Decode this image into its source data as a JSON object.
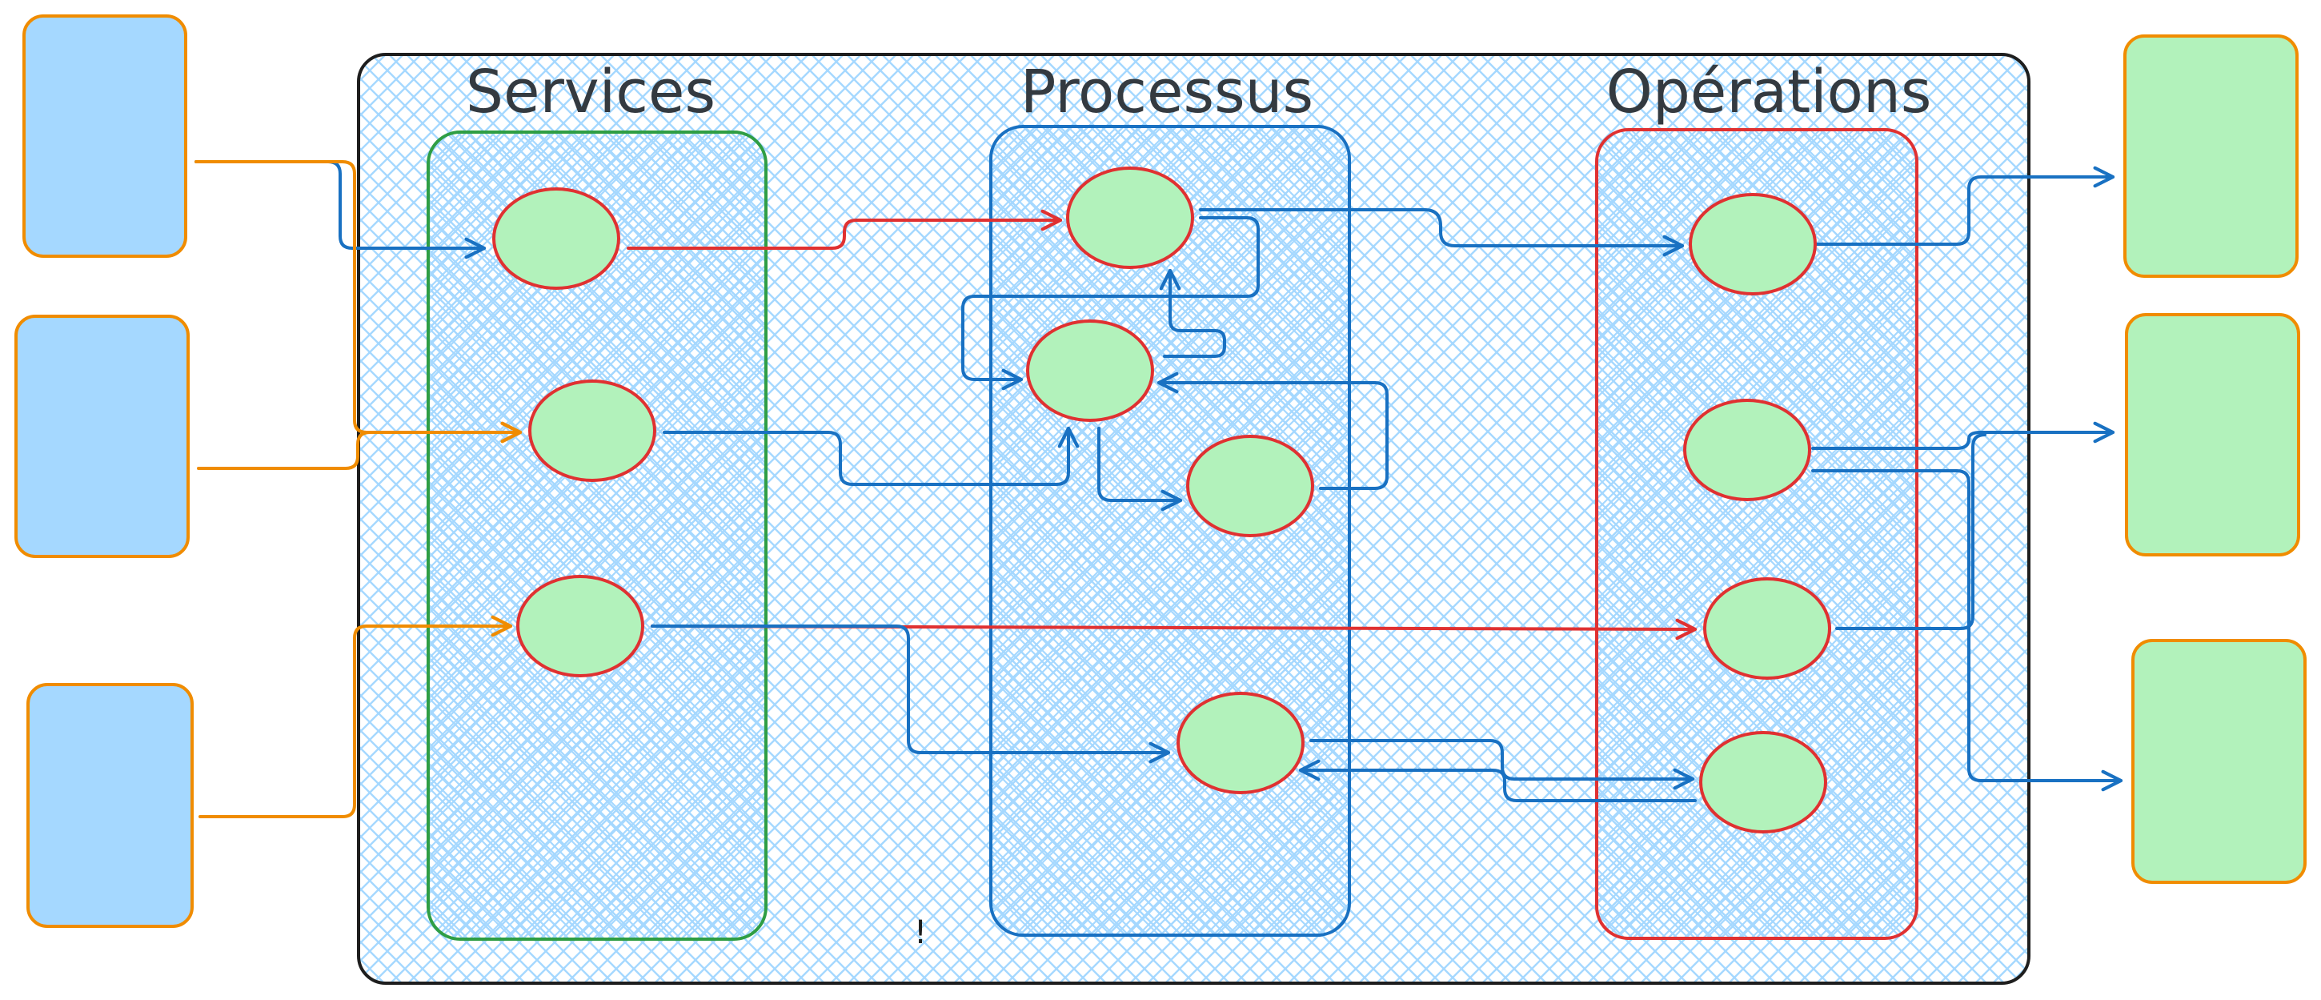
{
  "diagram": {
    "colors": {
      "container_fill": "#a5d8ff",
      "container_stroke": "#1e1e1e",
      "external_input_fill": "#a5d8ff",
      "external_output_fill": "#b2f2bb",
      "external_border": "#f08c00",
      "node_fill": "#b2f2bb",
      "node_stroke": "#e03131",
      "services_group_stroke": "#2f9e44",
      "processus_group_stroke": "#1971c2",
      "operations_group_stroke": "#e03131",
      "arrow_blue": "#1971c2",
      "arrow_red": "#e03131",
      "arrow_orange": "#f08c00"
    },
    "groups": [
      {
        "id": "services",
        "title": "Services"
      },
      {
        "id": "processus",
        "title": "Processus"
      },
      {
        "id": "operations",
        "title": "Opérations"
      }
    ],
    "external_inputs": [
      "input-1",
      "input-2",
      "input-3"
    ],
    "external_outputs": [
      "output-1",
      "output-2",
      "output-3"
    ],
    "nodes": {
      "services": [
        "s1",
        "s2",
        "s3"
      ],
      "processus": [
        "p1",
        "p2",
        "p3",
        "p4"
      ],
      "operations": [
        "o1",
        "o2",
        "o3",
        "o4"
      ]
    },
    "edges": [
      {
        "from": "input-1",
        "to": "s1",
        "color": "blue"
      },
      {
        "from": "input-1",
        "to": "s2",
        "color": "orange"
      },
      {
        "from": "input-2",
        "to": "s2",
        "color": "orange"
      },
      {
        "from": "input-3",
        "to": "s3",
        "color": "orange"
      },
      {
        "from": "s1",
        "to": "p1",
        "color": "red"
      },
      {
        "from": "s2",
        "to": "p2",
        "color": "blue"
      },
      {
        "from": "s3",
        "to": "o3",
        "color": "red"
      },
      {
        "from": "s3",
        "to": "p4",
        "color": "blue"
      },
      {
        "from": "p1",
        "to": "o1",
        "color": "blue"
      },
      {
        "from": "p1",
        "to": "p2",
        "color": "blue"
      },
      {
        "from": "p2",
        "to": "p1",
        "color": "blue"
      },
      {
        "from": "p2",
        "to": "p3",
        "color": "blue"
      },
      {
        "from": "p3",
        "to": "p2",
        "color": "blue"
      },
      {
        "from": "p4",
        "to": "o4",
        "color": "blue"
      },
      {
        "from": "o4",
        "to": "p4",
        "color": "blue"
      },
      {
        "from": "o1",
        "to": "output-1",
        "color": "blue"
      },
      {
        "from": "o2",
        "to": "output-2",
        "color": "blue"
      },
      {
        "from": "o2",
        "to": "output-3",
        "color": "blue"
      },
      {
        "from": "o3",
        "to": "output-2",
        "color": "blue"
      }
    ],
    "marker": "!"
  }
}
